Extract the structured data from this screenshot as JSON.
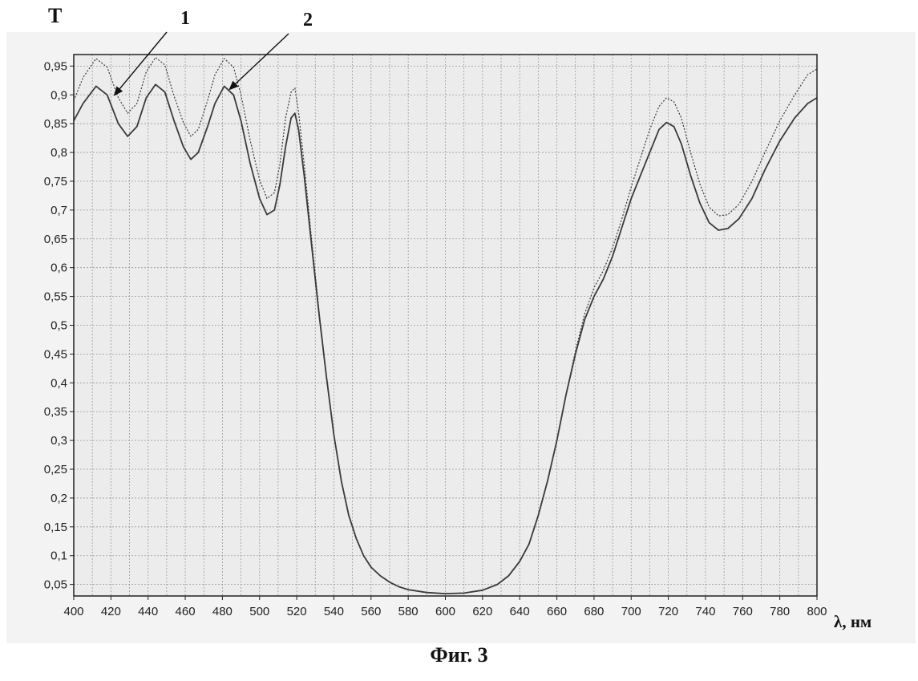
{
  "figure_caption": "Фиг. 3",
  "chart_data": {
    "type": "line",
    "title": "",
    "ylabel": "T",
    "xlabel": "λ, нм",
    "xlim": [
      400,
      800
    ],
    "ylim": [
      0.03,
      0.97
    ],
    "grid": true,
    "x_ticks": [
      400,
      420,
      440,
      460,
      480,
      500,
      520,
      540,
      560,
      580,
      600,
      620,
      640,
      660,
      680,
      700,
      720,
      740,
      760,
      780,
      800
    ],
    "x_tick_labels": [
      "400",
      "420",
      "440",
      "460",
      "480",
      "500",
      "520",
      "540",
      "560",
      "580",
      "600",
      "620",
      "640",
      "660",
      "680",
      "700",
      "720",
      "740",
      "760",
      "780",
      "800"
    ],
    "y_ticks": [
      0.05,
      0.1,
      0.15,
      0.2,
      0.25,
      0.3,
      0.35,
      0.4,
      0.45,
      0.5,
      0.55,
      0.6,
      0.65,
      0.7,
      0.75,
      0.8,
      0.85,
      0.9,
      0.95
    ],
    "y_tick_labels": [
      "0,05",
      "0,1",
      "0,15",
      "0,2",
      "0,25",
      "0,3",
      "0,35",
      "0,4",
      "0,45",
      "0,5",
      "0,55",
      "0,6",
      "0,65",
      "0,7",
      "0,75",
      "0,8",
      "0,85",
      "0,9",
      "0,95"
    ],
    "annotations": [
      {
        "text": "1",
        "points_to": {
          "x": 422,
          "y": 0.9
        }
      },
      {
        "text": "2",
        "points_to": {
          "x": 484,
          "y": 0.91
        }
      }
    ],
    "series": [
      {
        "name": "1",
        "style": "solid",
        "points": [
          [
            400,
            0.855
          ],
          [
            405,
            0.885
          ],
          [
            412,
            0.915
          ],
          [
            418,
            0.9
          ],
          [
            424,
            0.85
          ],
          [
            429,
            0.828
          ],
          [
            434,
            0.845
          ],
          [
            439,
            0.895
          ],
          [
            444,
            0.918
          ],
          [
            449,
            0.905
          ],
          [
            454,
            0.855
          ],
          [
            459,
            0.81
          ],
          [
            463,
            0.788
          ],
          [
            467,
            0.8
          ],
          [
            472,
            0.845
          ],
          [
            476,
            0.885
          ],
          [
            481,
            0.915
          ],
          [
            486,
            0.9
          ],
          [
            490,
            0.855
          ],
          [
            495,
            0.78
          ],
          [
            500,
            0.72
          ],
          [
            504,
            0.692
          ],
          [
            508,
            0.7
          ],
          [
            511,
            0.745
          ],
          [
            514,
            0.81
          ],
          [
            517,
            0.86
          ],
          [
            519,
            0.868
          ],
          [
            521,
            0.84
          ],
          [
            524,
            0.76
          ],
          [
            528,
            0.64
          ],
          [
            532,
            0.52
          ],
          [
            536,
            0.41
          ],
          [
            540,
            0.31
          ],
          [
            544,
            0.23
          ],
          [
            548,
            0.17
          ],
          [
            552,
            0.13
          ],
          [
            556,
            0.1
          ],
          [
            560,
            0.08
          ],
          [
            565,
            0.065
          ],
          [
            570,
            0.054
          ],
          [
            575,
            0.046
          ],
          [
            580,
            0.041
          ],
          [
            590,
            0.036
          ],
          [
            600,
            0.034
          ],
          [
            610,
            0.035
          ],
          [
            620,
            0.04
          ],
          [
            628,
            0.05
          ],
          [
            634,
            0.065
          ],
          [
            640,
            0.09
          ],
          [
            645,
            0.12
          ],
          [
            650,
            0.17
          ],
          [
            655,
            0.23
          ],
          [
            660,
            0.3
          ],
          [
            665,
            0.38
          ],
          [
            670,
            0.45
          ],
          [
            675,
            0.51
          ],
          [
            680,
            0.55
          ],
          [
            685,
            0.58
          ],
          [
            690,
            0.62
          ],
          [
            695,
            0.67
          ],
          [
            700,
            0.72
          ],
          [
            705,
            0.76
          ],
          [
            710,
            0.8
          ],
          [
            715,
            0.84
          ],
          [
            719,
            0.852
          ],
          [
            723,
            0.845
          ],
          [
            727,
            0.815
          ],
          [
            732,
            0.76
          ],
          [
            737,
            0.712
          ],
          [
            742,
            0.678
          ],
          [
            747,
            0.665
          ],
          [
            752,
            0.668
          ],
          [
            758,
            0.685
          ],
          [
            765,
            0.72
          ],
          [
            772,
            0.77
          ],
          [
            780,
            0.82
          ],
          [
            788,
            0.86
          ],
          [
            795,
            0.885
          ],
          [
            800,
            0.895
          ]
        ]
      },
      {
        "name": "2",
        "style": "dotted",
        "points": [
          [
            400,
            0.89
          ],
          [
            405,
            0.93
          ],
          [
            412,
            0.963
          ],
          [
            418,
            0.948
          ],
          [
            424,
            0.895
          ],
          [
            429,
            0.868
          ],
          [
            434,
            0.885
          ],
          [
            439,
            0.94
          ],
          [
            444,
            0.965
          ],
          [
            449,
            0.952
          ],
          [
            454,
            0.898
          ],
          [
            459,
            0.852
          ],
          [
            463,
            0.828
          ],
          [
            467,
            0.84
          ],
          [
            472,
            0.89
          ],
          [
            476,
            0.935
          ],
          [
            481,
            0.963
          ],
          [
            486,
            0.948
          ],
          [
            490,
            0.9
          ],
          [
            495,
            0.82
          ],
          [
            500,
            0.752
          ],
          [
            504,
            0.72
          ],
          [
            508,
            0.73
          ],
          [
            511,
            0.78
          ],
          [
            514,
            0.86
          ],
          [
            517,
            0.905
          ],
          [
            519,
            0.912
          ],
          [
            521,
            0.87
          ],
          [
            524,
            0.78
          ],
          [
            528,
            0.65
          ],
          [
            532,
            0.525
          ],
          [
            536,
            0.41
          ],
          [
            540,
            0.31
          ],
          [
            544,
            0.23
          ],
          [
            548,
            0.17
          ],
          [
            552,
            0.13
          ],
          [
            556,
            0.1
          ],
          [
            560,
            0.08
          ],
          [
            565,
            0.065
          ],
          [
            570,
            0.054
          ],
          [
            575,
            0.046
          ],
          [
            580,
            0.041
          ],
          [
            590,
            0.036
          ],
          [
            600,
            0.034
          ],
          [
            610,
            0.035
          ],
          [
            620,
            0.04
          ],
          [
            628,
            0.05
          ],
          [
            634,
            0.065
          ],
          [
            640,
            0.09
          ],
          [
            645,
            0.12
          ],
          [
            650,
            0.17
          ],
          [
            655,
            0.23
          ],
          [
            660,
            0.3
          ],
          [
            665,
            0.38
          ],
          [
            670,
            0.455
          ],
          [
            675,
            0.52
          ],
          [
            680,
            0.565
          ],
          [
            685,
            0.595
          ],
          [
            690,
            0.635
          ],
          [
            695,
            0.685
          ],
          [
            700,
            0.74
          ],
          [
            705,
            0.79
          ],
          [
            710,
            0.84
          ],
          [
            715,
            0.88
          ],
          [
            719,
            0.895
          ],
          [
            723,
            0.888
          ],
          [
            727,
            0.86
          ],
          [
            732,
            0.8
          ],
          [
            737,
            0.745
          ],
          [
            742,
            0.705
          ],
          [
            747,
            0.69
          ],
          [
            752,
            0.692
          ],
          [
            758,
            0.71
          ],
          [
            765,
            0.75
          ],
          [
            772,
            0.8
          ],
          [
            780,
            0.855
          ],
          [
            788,
            0.9
          ],
          [
            795,
            0.935
          ],
          [
            800,
            0.945
          ]
        ]
      }
    ],
    "colors": {
      "line": "#3a3a3a",
      "grid": "#9a9a9a",
      "axis": "#222222"
    }
  }
}
